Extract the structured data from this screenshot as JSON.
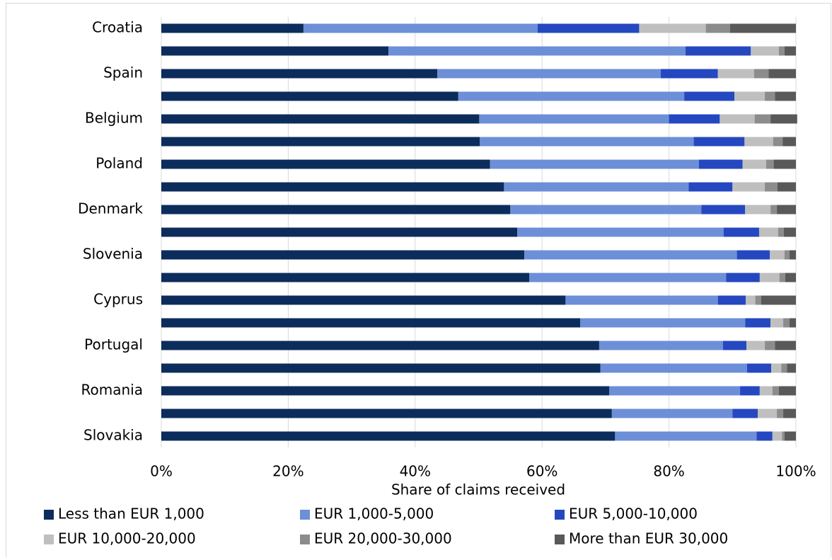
{
  "chart_data": {
    "type": "stacked_barh",
    "categories": [
      "Croatia",
      null,
      "Spain",
      null,
      "Belgium",
      null,
      "Poland",
      null,
      "Denmark",
      null,
      "Slovenia",
      null,
      "Cyprus",
      null,
      "Portugal",
      null,
      "Romania",
      null,
      "Slovakia"
    ],
    "series": [
      {
        "name": "Less than EUR 1,000",
        "color": "#0c2d5c",
        "values": [
          22.4,
          35.8,
          43.5,
          46.8,
          50.1,
          50.2,
          51.8,
          54.0,
          55.0,
          56.1,
          57.2,
          58.0,
          63.7,
          66.0,
          69.0,
          69.2,
          70.6,
          71.0,
          71.5
        ]
      },
      {
        "name": "EUR 1,000-5,000",
        "color": "#6d8fd8",
        "values": [
          36.9,
          46.8,
          35.2,
          35.6,
          29.9,
          33.7,
          32.9,
          29.1,
          30.1,
          32.5,
          33.5,
          31.0,
          24.0,
          26.0,
          19.5,
          23.1,
          20.6,
          19.0,
          22.3
        ]
      },
      {
        "name": "EUR 5,000-10,000",
        "color": "#2548c0",
        "values": [
          16.0,
          10.3,
          9.0,
          7.9,
          8.0,
          8.0,
          6.9,
          6.9,
          6.9,
          5.6,
          5.2,
          5.3,
          4.4,
          4.0,
          3.7,
          3.8,
          3.1,
          4.0,
          2.5
        ]
      },
      {
        "name": "EUR 10,000-20,000",
        "color": "#bfbfbf",
        "values": [
          10.5,
          4.4,
          5.7,
          4.8,
          5.5,
          4.5,
          3.7,
          5.1,
          4.0,
          3.0,
          2.3,
          3.1,
          1.5,
          2.0,
          2.9,
          1.6,
          2.0,
          3.0,
          1.5
        ]
      },
      {
        "name": "EUR 20,000-30,000",
        "color": "#8c8c8c",
        "values": [
          3.8,
          0.9,
          2.3,
          1.6,
          2.5,
          1.5,
          1.2,
          2.0,
          1.0,
          0.9,
          0.8,
          0.9,
          0.9,
          1.0,
          1.6,
          0.9,
          1.0,
          1.0,
          0.4
        ]
      },
      {
        "name": "More than EUR 30,000",
        "color": "#595959",
        "values": [
          10.4,
          1.8,
          4.3,
          3.3,
          4.2,
          2.1,
          3.5,
          2.9,
          3.0,
          1.9,
          1.0,
          1.7,
          5.5,
          1.0,
          3.3,
          1.4,
          2.7,
          2.0,
          1.8
        ]
      }
    ],
    "xlabel": "Share of claims received",
    "xlim": [
      0,
      100
    ],
    "xticks": [
      {
        "value": 0,
        "label": "0%"
      },
      {
        "value": 20,
        "label": "20%"
      },
      {
        "value": 40,
        "label": "40%"
      },
      {
        "value": 60,
        "label": "60%"
      },
      {
        "value": 80,
        "label": "80%"
      },
      {
        "value": 100,
        "label": "100%"
      }
    ],
    "grid": true,
    "legend": "bottom"
  }
}
